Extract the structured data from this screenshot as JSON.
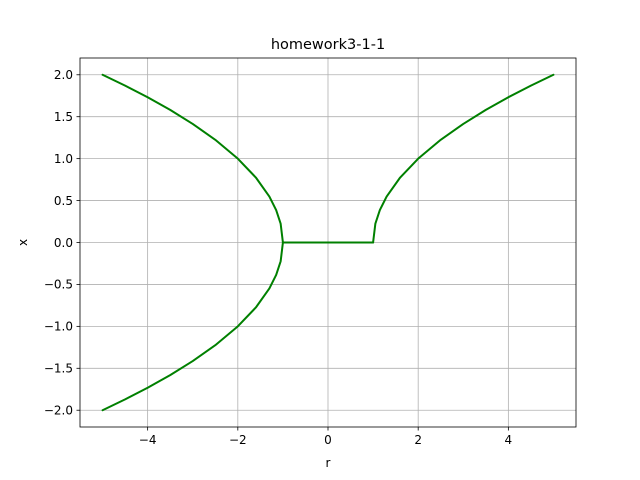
{
  "chart_data": {
    "type": "line",
    "title": "homework3-1-1",
    "xlabel": "r",
    "ylabel": "x",
    "xlim": [
      -5.5,
      5.5
    ],
    "ylim": [
      -2.2,
      2.2
    ],
    "grid": true,
    "x_ticks": [
      -4,
      -2,
      0,
      2,
      4
    ],
    "x_tick_labels": [
      "−4",
      "−2",
      "0",
      "2",
      "4"
    ],
    "y_ticks": [
      -2.0,
      -1.5,
      -1.0,
      -0.5,
      0.0,
      0.5,
      1.0,
      1.5,
      2.0
    ],
    "y_tick_labels": [
      "−2.0",
      "−1.5",
      "−1.0",
      "−0.5",
      "0.0",
      "0.5",
      "1.0",
      "1.5",
      "2.0"
    ],
    "series_color": "#008000",
    "series": [
      {
        "x": [
          -5.0,
          -4.5,
          -4.0,
          -3.5,
          -3.0,
          -2.5,
          -2.0,
          -1.6,
          -1.3,
          -1.15,
          -1.05,
          -1.0
        ],
        "y": [
          2.0,
          1.871,
          1.732,
          1.581,
          1.414,
          1.225,
          1.0,
          0.775,
          0.548,
          0.387,
          0.224,
          0.0
        ]
      },
      {
        "x": [
          -5.0,
          -4.5,
          -4.0,
          -3.5,
          -3.0,
          -2.5,
          -2.0,
          -1.6,
          -1.3,
          -1.15,
          -1.05,
          -1.0
        ],
        "y": [
          -2.0,
          -1.871,
          -1.732,
          -1.581,
          -1.414,
          -1.225,
          -1.0,
          -0.775,
          -0.548,
          -0.387,
          -0.224,
          0.0
        ]
      },
      {
        "x": [
          -1.0,
          -0.5,
          0.0,
          0.5,
          1.0
        ],
        "y": [
          0.0,
          0.0,
          0.0,
          0.0,
          0.0
        ]
      },
      {
        "x": [
          1.0,
          1.05,
          1.15,
          1.3,
          1.6,
          2.0,
          2.5,
          3.0,
          3.5,
          4.0,
          4.5,
          5.0
        ],
        "y": [
          0.0,
          0.224,
          0.387,
          0.548,
          0.775,
          1.0,
          1.225,
          1.414,
          1.581,
          1.732,
          1.871,
          2.0
        ]
      }
    ]
  }
}
